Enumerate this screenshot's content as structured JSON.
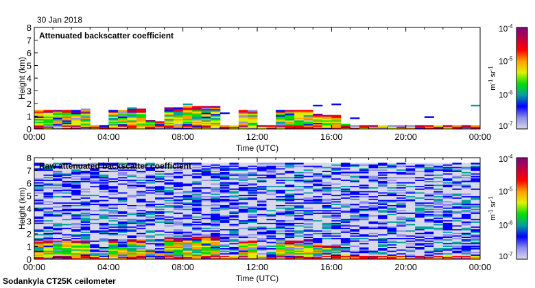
{
  "header": {
    "date": "30 Jan 2018"
  },
  "footer": {
    "instrument": "Sodankyla CT25K ceilometer"
  },
  "colors": {
    "scale": [
      "#d8d8e8",
      "#8c8cf0",
      "#0000ff",
      "#00a0a0",
      "#00e000",
      "#e0f000",
      "#ffa000",
      "#ff0000",
      "#c00040",
      "#800080"
    ]
  },
  "chart_data": [
    {
      "type": "heatmap",
      "title": "Attenuated backscatter coefficient",
      "xlabel": "Time (UTC)",
      "ylabel": "Height (km)",
      "xlim": [
        0,
        24
      ],
      "ylim": [
        0,
        8
      ],
      "xticks": [
        "00:00",
        "04:00",
        "08:00",
        "12:00",
        "16:00",
        "20:00",
        "00:00"
      ],
      "yticks": [
        "0",
        "1",
        "2",
        "3",
        "4",
        "5",
        "6",
        "7",
        "8"
      ],
      "colorbar": {
        "label": "m-1 sr-1",
        "label_main": [
          "m",
          "sr"
        ],
        "label_sup": [
          "-1",
          "-1"
        ],
        "ticks": [
          "10",
          "10",
          "10",
          "10"
        ],
        "exponents": [
          "-4",
          "-5",
          "-6",
          "-7"
        ],
        "range": [
          1e-07,
          0.0001
        ],
        "scale": "log"
      },
      "time_step_h": 0.5,
      "low_cloud_top_km": [
        1.5,
        1.5,
        1.5,
        1.5,
        1.5,
        1.6,
        0.3,
        0.3,
        1.5,
        1.5,
        1.6,
        1.6,
        0.7,
        0.6,
        1.7,
        1.7,
        1.8,
        1.8,
        1.8,
        1.8,
        0.3,
        0.3,
        1.5,
        1.5,
        0.3,
        0.3,
        1.5,
        1.5,
        1.5,
        1.5,
        1.2,
        1.0,
        1.0,
        0.4,
        0.3,
        0.3,
        0.3,
        0.3,
        0.3,
        0.3,
        0.3,
        0.3,
        0.3,
        0.3,
        0.3,
        0.3,
        0.3,
        0.3
      ],
      "noise_top_km": 0
    },
    {
      "type": "heatmap",
      "title": "Raw attenuated backscatter coefficient",
      "xlabel": "Time (UTC)",
      "ylabel": "Height (km)",
      "xlim": [
        0,
        24
      ],
      "ylim": [
        0,
        8
      ],
      "xticks": [
        "00:00",
        "04:00",
        "08:00",
        "12:00",
        "16:00",
        "20:00",
        "00:00"
      ],
      "yticks": [
        "0",
        "1",
        "2",
        "3",
        "4",
        "5",
        "6",
        "7",
        "8"
      ],
      "colorbar": {
        "label": "m-1 sr-1",
        "label_main": [
          "m",
          "sr"
        ],
        "label_sup": [
          "-1",
          "-1"
        ],
        "ticks": [
          "10",
          "10",
          "10",
          "10"
        ],
        "exponents": [
          "-4",
          "-5",
          "-6",
          "-7"
        ],
        "range": [
          1e-07,
          0.0001
        ],
        "scale": "log"
      },
      "time_step_h": 0.5,
      "low_cloud_top_km": [
        1.5,
        1.5,
        1.5,
        1.5,
        1.5,
        1.6,
        0.3,
        0.3,
        1.5,
        1.5,
        1.6,
        1.6,
        0.7,
        0.6,
        1.7,
        1.7,
        1.8,
        1.8,
        1.8,
        1.8,
        0.3,
        0.3,
        1.5,
        1.5,
        0.3,
        0.3,
        1.5,
        1.5,
        1.5,
        1.5,
        1.2,
        1.0,
        1.0,
        0.4,
        0.3,
        0.3,
        0.3,
        0.3,
        0.3,
        0.3,
        0.3,
        0.3,
        0.3,
        0.3,
        0.3,
        0.3,
        0.3,
        0.3
      ],
      "noise_top_km": 7.5
    }
  ]
}
